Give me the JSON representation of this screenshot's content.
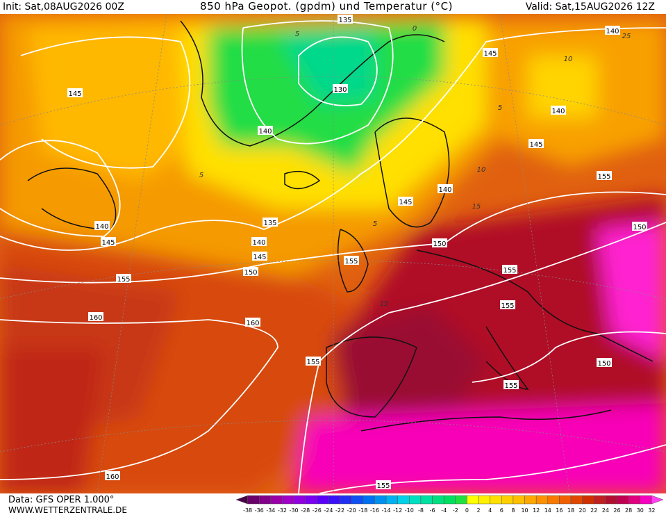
{
  "header": {
    "init": "Init: Sat,08AUG2026 00Z",
    "title": "850 hPa Geopot. (gpdm) und Temperatur (°C)",
    "valid": "Valid: Sat,15AUG2026 12Z"
  },
  "footer": {
    "data": "Data: GFS OPER 1.000°",
    "site": "WWW.WETTERZENTRALE.DE"
  },
  "colorbar": {
    "labels": [
      -38,
      -36,
      -34,
      -32,
      -30,
      -28,
      -26,
      -24,
      -22,
      -20,
      -18,
      -16,
      -14,
      -12,
      -10,
      -8,
      -6,
      -4,
      -2,
      0,
      2,
      4,
      6,
      8,
      10,
      12,
      14,
      16,
      18,
      20,
      22,
      24,
      26,
      28,
      30,
      32
    ],
    "colors": [
      "#4a0048",
      "#6a006a",
      "#82008a",
      "#9a00a8",
      "#a000c8",
      "#9000e0",
      "#7a00f0",
      "#5a00f8",
      "#3a10f8",
      "#2030f0",
      "#1050f0",
      "#0070f0",
      "#0090f0",
      "#00b0f0",
      "#00d0e8",
      "#00e0c0",
      "#00e0a0",
      "#00e080",
      "#00e060",
      "#20e040",
      "#ffff00",
      "#fff000",
      "#ffe000",
      "#ffd000",
      "#ffc000",
      "#ffa800",
      "#ff9000",
      "#f87800",
      "#f06000",
      "#e04800",
      "#d03000",
      "#c02020",
      "#b01030",
      "#c00050",
      "#e00080",
      "#f800c0",
      "#ff40f0"
    ]
  },
  "contour_labels": [
    135,
    140,
    145,
    130,
    140,
    140,
    145,
    145,
    155,
    140,
    145,
    135,
    140,
    145,
    140,
    145,
    150,
    150,
    150,
    155,
    155,
    155,
    155,
    160,
    160,
    155,
    150,
    155,
    160,
    155
  ],
  "temperature_labels": [
    0,
    5,
    5,
    10,
    5,
    10,
    15,
    15,
    25,
    5
  ]
}
